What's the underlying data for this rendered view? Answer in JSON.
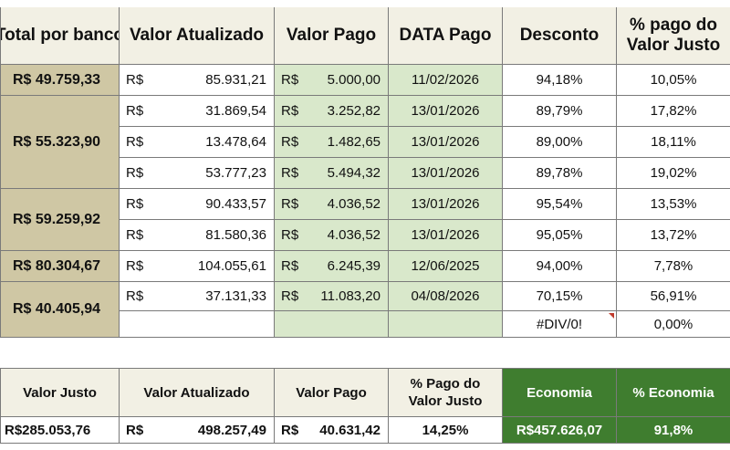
{
  "headers": {
    "total_por_banco": "Total por banco",
    "valor_atualizado": "Valor Atualizado",
    "valor_pago": "Valor Pago",
    "data_pago": "DATA Pago",
    "desconto": "Desconto",
    "pct_pago_valor_justo": "% pago do Valor Justo"
  },
  "currency": "R$",
  "bank_totals": [
    "R$  49.759,33",
    "R$  55.323,90",
    "R$  59.259,92",
    "R$  80.304,67",
    "R$  40.405,94"
  ],
  "rows": [
    {
      "valor_atualizado": "85.931,21",
      "valor_pago": "5.000,00",
      "data_pago": "11/02/2026",
      "desconto": "94,18%",
      "pct_pago": "10,05%"
    },
    {
      "valor_atualizado": "31.869,54",
      "valor_pago": "3.252,82",
      "data_pago": "13/01/2026",
      "desconto": "89,79%",
      "pct_pago": "17,82%"
    },
    {
      "valor_atualizado": "13.478,64",
      "valor_pago": "1.482,65",
      "data_pago": "13/01/2026",
      "desconto": "89,00%",
      "pct_pago": "18,11%"
    },
    {
      "valor_atualizado": "53.777,23",
      "valor_pago": "5.494,32",
      "data_pago": "13/01/2026",
      "desconto": "89,78%",
      "pct_pago": "19,02%"
    },
    {
      "valor_atualizado": "90.433,57",
      "valor_pago": "4.036,52",
      "data_pago": "13/01/2026",
      "desconto": "95,54%",
      "pct_pago": "13,53%"
    },
    {
      "valor_atualizado": "81.580,36",
      "valor_pago": "4.036,52",
      "data_pago": "13/01/2026",
      "desconto": "95,05%",
      "pct_pago": "13,72%"
    },
    {
      "valor_atualizado": "104.055,61",
      "valor_pago": "6.245,39",
      "data_pago": "12/06/2025",
      "desconto": "94,00%",
      "pct_pago": "7,78%"
    },
    {
      "valor_atualizado": "37.131,33",
      "valor_pago": "11.083,20",
      "data_pago": "04/08/2026",
      "desconto": "70,15%",
      "pct_pago": "56,91%"
    },
    {
      "valor_atualizado": "",
      "valor_pago": "",
      "data_pago": "",
      "desconto": "#DIV/0!",
      "pct_pago": "0,00%"
    }
  ],
  "summary": {
    "headers": {
      "valor_justo": "Valor Justo",
      "valor_atualizado": "Valor Atualizado",
      "valor_pago": "Valor Pago",
      "pct_pago_valor_justo": "% Pago do Valor Justo",
      "economia": "Economia",
      "pct_economia": "% Economia"
    },
    "values": {
      "valor_justo": "R$285.053,76",
      "valor_atualizado": "498.257,49",
      "valor_pago": "40.631,42",
      "pct_pago_valor_justo": "14,25%",
      "economia": "R$457.626,07",
      "pct_economia": "91,8%"
    }
  },
  "colors": {
    "header_bg": "#f2f0e4",
    "bank_total_bg": "#cfc7a4",
    "valor_pago_bg": "#d9e8cb",
    "economia_bg": "#3f7d2f",
    "error_marker": "#c0392b"
  }
}
